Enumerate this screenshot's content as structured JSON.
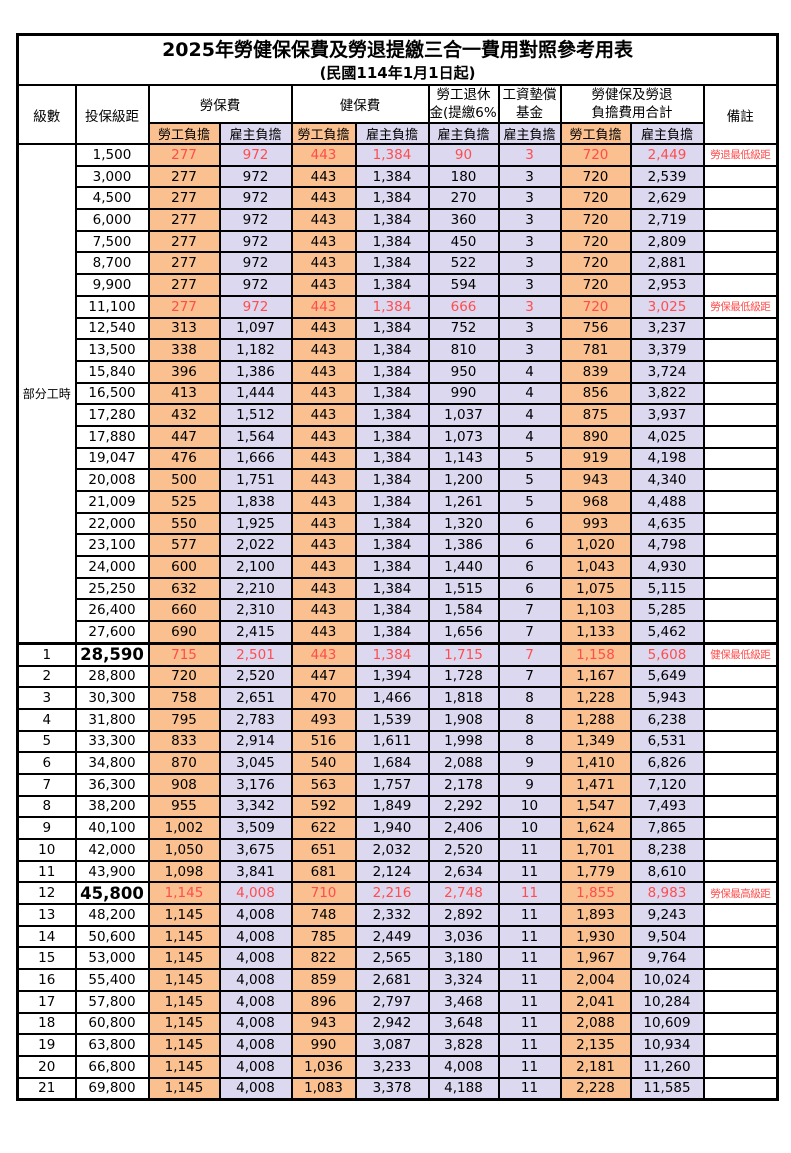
{
  "title": "2025年勞健保保費及勞退提繳三合一費用對照參考用表",
  "subtitle": "(民國114年1月1日起)",
  "header": {
    "level": "級數",
    "bracket": "投保級距",
    "labor": "勞保費",
    "health": "健保費",
    "pension_l1": "勞工退休",
    "pension_l2": "金(提繳6%)",
    "fund_l1": "工資墊償",
    "fund_l2": "基金",
    "total_l1": "勞健保及勞退",
    "total_l2": "負擔費用合計",
    "note": "備註",
    "employee": "勞工負擔",
    "employer": "雇主負擔"
  },
  "part_time_label": "部分工時",
  "colors": {
    "employee_bg": "#FAC08F",
    "employer_bg": "#DCD8F0",
    "red_text": "#FF4D4D"
  },
  "rows": [
    {
      "bracket": "1,500",
      "values": [
        "277",
        "972",
        "443",
        "1,384",
        "90",
        "3",
        "720",
        "2,449"
      ],
      "note": "勞退最低級距",
      "red": true
    },
    {
      "bracket": "3,000",
      "values": [
        "277",
        "972",
        "443",
        "1,384",
        "180",
        "3",
        "720",
        "2,539"
      ]
    },
    {
      "bracket": "4,500",
      "values": [
        "277",
        "972",
        "443",
        "1,384",
        "270",
        "3",
        "720",
        "2,629"
      ]
    },
    {
      "bracket": "6,000",
      "values": [
        "277",
        "972",
        "443",
        "1,384",
        "360",
        "3",
        "720",
        "2,719"
      ]
    },
    {
      "bracket": "7,500",
      "values": [
        "277",
        "972",
        "443",
        "1,384",
        "450",
        "3",
        "720",
        "2,809"
      ]
    },
    {
      "bracket": "8,700",
      "values": [
        "277",
        "972",
        "443",
        "1,384",
        "522",
        "3",
        "720",
        "2,881"
      ]
    },
    {
      "bracket": "9,900",
      "values": [
        "277",
        "972",
        "443",
        "1,384",
        "594",
        "3",
        "720",
        "2,953"
      ]
    },
    {
      "bracket": "11,100",
      "values": [
        "277",
        "972",
        "443",
        "1,384",
        "666",
        "3",
        "720",
        "3,025"
      ],
      "note": "勞保最低級距",
      "red": true
    },
    {
      "bracket": "12,540",
      "values": [
        "313",
        "1,097",
        "443",
        "1,384",
        "752",
        "3",
        "756",
        "3,237"
      ]
    },
    {
      "bracket": "13,500",
      "values": [
        "338",
        "1,182",
        "443",
        "1,384",
        "810",
        "3",
        "781",
        "3,379"
      ]
    },
    {
      "bracket": "15,840",
      "values": [
        "396",
        "1,386",
        "443",
        "1,384",
        "950",
        "4",
        "839",
        "3,724"
      ]
    },
    {
      "bracket": "16,500",
      "values": [
        "413",
        "1,444",
        "443",
        "1,384",
        "990",
        "4",
        "856",
        "3,822"
      ]
    },
    {
      "bracket": "17,280",
      "values": [
        "432",
        "1,512",
        "443",
        "1,384",
        "1,037",
        "4",
        "875",
        "3,937"
      ]
    },
    {
      "bracket": "17,880",
      "values": [
        "447",
        "1,564",
        "443",
        "1,384",
        "1,073",
        "4",
        "890",
        "4,025"
      ]
    },
    {
      "bracket": "19,047",
      "values": [
        "476",
        "1,666",
        "443",
        "1,384",
        "1,143",
        "5",
        "919",
        "4,198"
      ]
    },
    {
      "bracket": "20,008",
      "values": [
        "500",
        "1,751",
        "443",
        "1,384",
        "1,200",
        "5",
        "943",
        "4,340"
      ]
    },
    {
      "bracket": "21,009",
      "values": [
        "525",
        "1,838",
        "443",
        "1,384",
        "1,261",
        "5",
        "968",
        "4,488"
      ]
    },
    {
      "bracket": "22,000",
      "values": [
        "550",
        "1,925",
        "443",
        "1,384",
        "1,320",
        "6",
        "993",
        "4,635"
      ]
    },
    {
      "bracket": "23,100",
      "values": [
        "577",
        "2,022",
        "443",
        "1,384",
        "1,386",
        "6",
        "1,020",
        "4,798"
      ]
    },
    {
      "bracket": "24,000",
      "values": [
        "600",
        "2,100",
        "443",
        "1,384",
        "1,440",
        "6",
        "1,043",
        "4,930"
      ]
    },
    {
      "bracket": "25,250",
      "values": [
        "632",
        "2,210",
        "443",
        "1,384",
        "1,515",
        "6",
        "1,075",
        "5,115"
      ]
    },
    {
      "bracket": "26,400",
      "values": [
        "660",
        "2,310",
        "443",
        "1,384",
        "1,584",
        "7",
        "1,103",
        "5,285"
      ]
    },
    {
      "bracket": "27,600",
      "values": [
        "690",
        "2,415",
        "443",
        "1,384",
        "1,656",
        "7",
        "1,133",
        "5,462"
      ]
    },
    {
      "level": "1",
      "bracket": "28,590",
      "values": [
        "715",
        "2,501",
        "443",
        "1,384",
        "1,715",
        "7",
        "1,158",
        "5,608"
      ],
      "note": "健保最低級距",
      "red": true,
      "bold": true,
      "thick_top": true
    },
    {
      "level": "2",
      "bracket": "28,800",
      "values": [
        "720",
        "2,520",
        "447",
        "1,394",
        "1,728",
        "7",
        "1,167",
        "5,649"
      ]
    },
    {
      "level": "3",
      "bracket": "30,300",
      "values": [
        "758",
        "2,651",
        "470",
        "1,466",
        "1,818",
        "8",
        "1,228",
        "5,943"
      ]
    },
    {
      "level": "4",
      "bracket": "31,800",
      "values": [
        "795",
        "2,783",
        "493",
        "1,539",
        "1,908",
        "8",
        "1,288",
        "6,238"
      ]
    },
    {
      "level": "5",
      "bracket": "33,300",
      "values": [
        "833",
        "2,914",
        "516",
        "1,611",
        "1,998",
        "8",
        "1,349",
        "6,531"
      ]
    },
    {
      "level": "6",
      "bracket": "34,800",
      "values": [
        "870",
        "3,045",
        "540",
        "1,684",
        "2,088",
        "9",
        "1,410",
        "6,826"
      ]
    },
    {
      "level": "7",
      "bracket": "36,300",
      "values": [
        "908",
        "3,176",
        "563",
        "1,757",
        "2,178",
        "9",
        "1,471",
        "7,120"
      ]
    },
    {
      "level": "8",
      "bracket": "38,200",
      "values": [
        "955",
        "3,342",
        "592",
        "1,849",
        "2,292",
        "10",
        "1,547",
        "7,493"
      ]
    },
    {
      "level": "9",
      "bracket": "40,100",
      "values": [
        "1,002",
        "3,509",
        "622",
        "1,940",
        "2,406",
        "10",
        "1,624",
        "7,865"
      ]
    },
    {
      "level": "10",
      "bracket": "42,000",
      "values": [
        "1,050",
        "3,675",
        "651",
        "2,032",
        "2,520",
        "11",
        "1,701",
        "8,238"
      ]
    },
    {
      "level": "11",
      "bracket": "43,900",
      "values": [
        "1,098",
        "3,841",
        "681",
        "2,124",
        "2,634",
        "11",
        "1,779",
        "8,610"
      ]
    },
    {
      "level": "12",
      "bracket": "45,800",
      "values": [
        "1,145",
        "4,008",
        "710",
        "2,216",
        "2,748",
        "11",
        "1,855",
        "8,983"
      ],
      "note": "勞保最高級距",
      "red": true,
      "bold": true
    },
    {
      "level": "13",
      "bracket": "48,200",
      "values": [
        "1,145",
        "4,008",
        "748",
        "2,332",
        "2,892",
        "11",
        "1,893",
        "9,243"
      ]
    },
    {
      "level": "14",
      "bracket": "50,600",
      "values": [
        "1,145",
        "4,008",
        "785",
        "2,449",
        "3,036",
        "11",
        "1,930",
        "9,504"
      ]
    },
    {
      "level": "15",
      "bracket": "53,000",
      "values": [
        "1,145",
        "4,008",
        "822",
        "2,565",
        "3,180",
        "11",
        "1,967",
        "9,764"
      ]
    },
    {
      "level": "16",
      "bracket": "55,400",
      "values": [
        "1,145",
        "4,008",
        "859",
        "2,681",
        "3,324",
        "11",
        "2,004",
        "10,024"
      ]
    },
    {
      "level": "17",
      "bracket": "57,800",
      "values": [
        "1,145",
        "4,008",
        "896",
        "2,797",
        "3,468",
        "11",
        "2,041",
        "10,284"
      ]
    },
    {
      "level": "18",
      "bracket": "60,800",
      "values": [
        "1,145",
        "4,008",
        "943",
        "2,942",
        "3,648",
        "11",
        "2,088",
        "10,609"
      ]
    },
    {
      "level": "19",
      "bracket": "63,800",
      "values": [
        "1,145",
        "4,008",
        "990",
        "3,087",
        "3,828",
        "11",
        "2,135",
        "10,934"
      ]
    },
    {
      "level": "20",
      "bracket": "66,800",
      "values": [
        "1,145",
        "4,008",
        "1,036",
        "3,233",
        "4,008",
        "11",
        "2,181",
        "11,260"
      ]
    },
    {
      "level": "21",
      "bracket": "69,800",
      "values": [
        "1,145",
        "4,008",
        "1,083",
        "3,378",
        "4,188",
        "11",
        "2,228",
        "11,585"
      ]
    }
  ]
}
